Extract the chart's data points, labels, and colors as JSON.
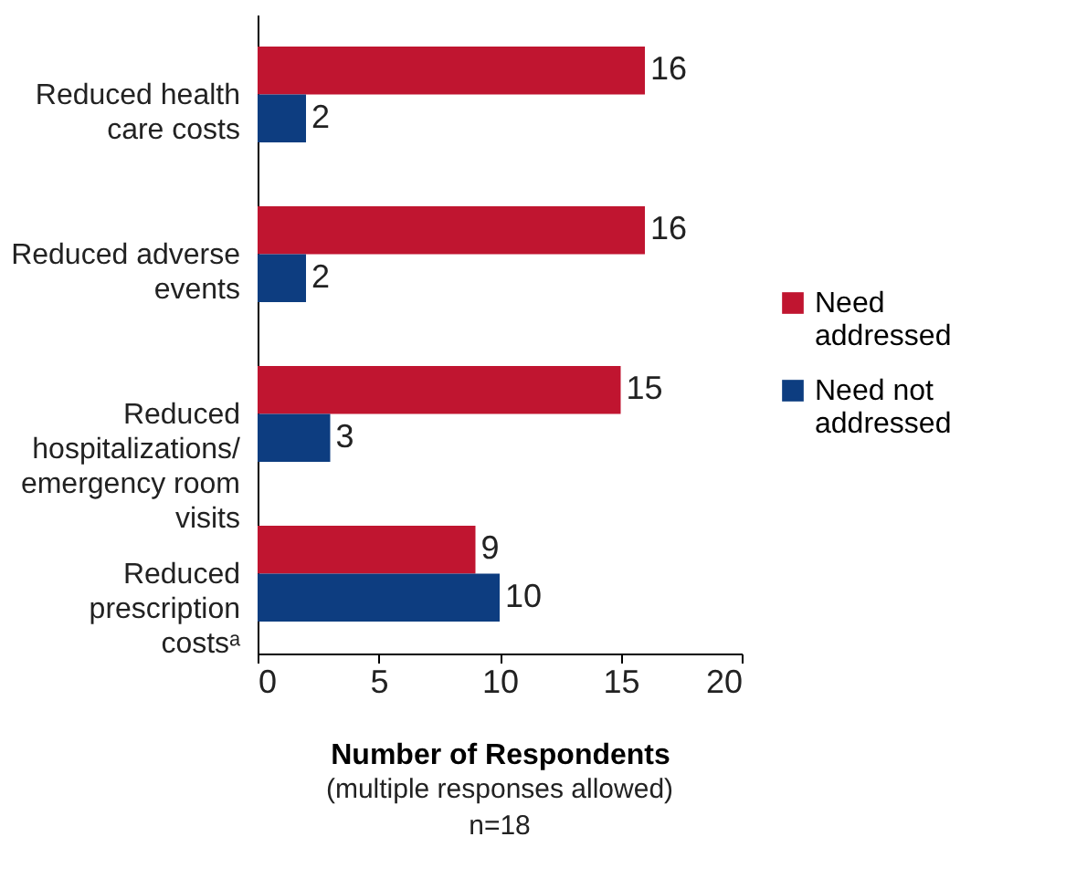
{
  "chart_data": {
    "type": "bar",
    "orientation": "horizontal",
    "categories": [
      "Reduced health care costs",
      "Reduced adverse events",
      "Reduced hospitalizations/ emergency room visits",
      "Reduced prescription costsᵃ"
    ],
    "series": [
      {
        "name": "Need addressed",
        "color": "#c01530",
        "values": [
          16,
          16,
          15,
          9
        ]
      },
      {
        "name": "Need not addressed",
        "color": "#0d3d80",
        "values": [
          2,
          2,
          3,
          10
        ]
      }
    ],
    "xlim": [
      0,
      20
    ],
    "xticks": [
      0,
      5,
      10,
      15,
      20
    ],
    "xlabel": "Number of Respondents",
    "annotations": [
      "(multiple responses allowed)",
      "n=18"
    ],
    "data_labels": true,
    "legend": "right",
    "grid": false
  }
}
